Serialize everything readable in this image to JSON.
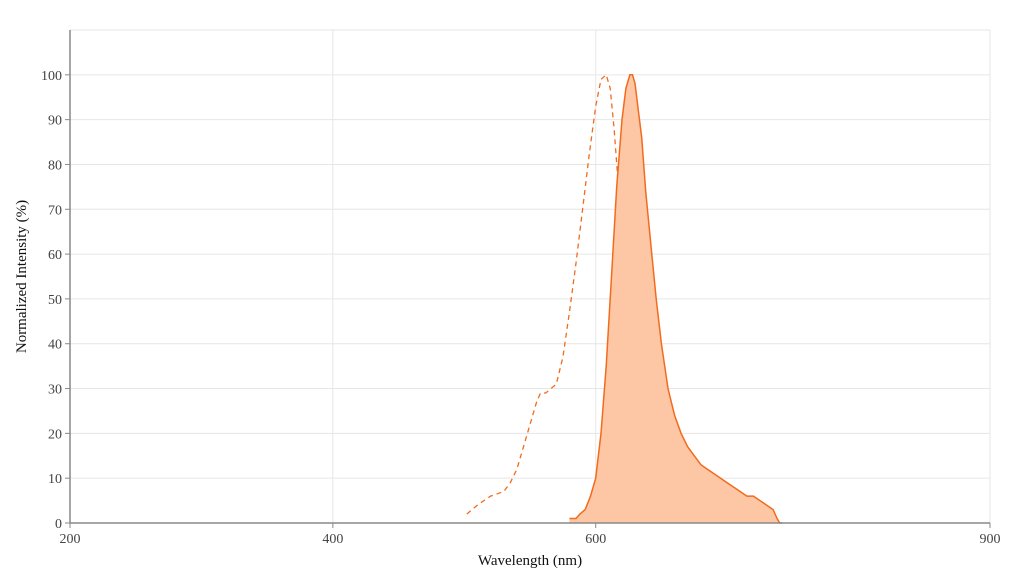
{
  "chart_data": {
    "type": "area",
    "xlabel": "Wavelength (nm)",
    "ylabel": "Normalized Intensity (%)",
    "xlim": [
      200,
      900
    ],
    "ylim": [
      0,
      110
    ],
    "x_ticks": [
      200,
      400,
      600,
      900
    ],
    "y_ticks": [
      0,
      10,
      20,
      30,
      40,
      50,
      60,
      70,
      80,
      90,
      100
    ],
    "grid": true,
    "colors": {
      "accent": "#f26b1d",
      "fill": "#fdc7a6"
    },
    "series": [
      {
        "style": "dashed",
        "x": [
          502,
          510,
          520,
          530,
          535,
          540,
          548,
          555,
          558,
          562,
          566,
          570,
          575,
          580,
          585,
          590,
          595,
          600,
          604,
          608,
          611,
          614,
          617,
          620,
          623,
          626,
          629,
          632,
          635,
          638,
          641,
          644,
          647,
          650,
          653,
          655
        ],
        "y": [
          2,
          4,
          6,
          7,
          9,
          12,
          20,
          27,
          29,
          29,
          30,
          31,
          37,
          47,
          58,
          70,
          82,
          93,
          99,
          100,
          97,
          88,
          76,
          63,
          50,
          38,
          28,
          20,
          13,
          9,
          6,
          4,
          2,
          1,
          0.5,
          0
        ]
      },
      {
        "style": "solid-filled",
        "x": [
          580,
          585,
          588,
          592,
          596,
          600,
          604,
          608,
          612,
          616,
          620,
          623,
          626,
          628,
          630,
          632,
          635,
          638,
          642,
          646,
          650,
          655,
          660,
          665,
          670,
          675,
          680,
          685,
          690,
          695,
          700,
          705,
          710,
          715,
          720,
          725,
          730,
          735,
          738,
          740,
          742
        ],
        "y": [
          1,
          1,
          2,
          3,
          6,
          10,
          20,
          35,
          55,
          75,
          90,
          97,
          100,
          100,
          98,
          93,
          86,
          74,
          62,
          50,
          40,
          30,
          24,
          20,
          17,
          15,
          13,
          12,
          11,
          10,
          9,
          8,
          7,
          6,
          6,
          5,
          4,
          3,
          1,
          0,
          0
        ]
      }
    ]
  }
}
